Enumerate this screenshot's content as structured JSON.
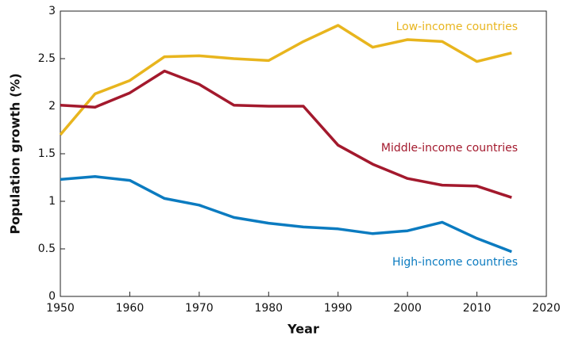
{
  "chart_data": {
    "type": "line",
    "x_label": "Year",
    "y_label": "Population growth (%)",
    "x": [
      1950,
      1955,
      1960,
      1965,
      1970,
      1975,
      1980,
      1985,
      1990,
      1995,
      2000,
      2005,
      2010,
      2015
    ],
    "series": [
      {
        "name": "Low-income countries",
        "color": "#e8b51e",
        "values": [
          1.7,
          2.13,
          2.27,
          2.52,
          2.53,
          2.5,
          2.48,
          2.68,
          2.85,
          2.62,
          2.7,
          2.68,
          2.47,
          2.56
        ]
      },
      {
        "name": "Middle-income countries",
        "color": "#a3192d",
        "values": [
          2.01,
          1.99,
          2.14,
          2.37,
          2.23,
          2.01,
          2.0,
          2.0,
          1.59,
          1.39,
          1.24,
          1.17,
          1.16,
          1.04
        ]
      },
      {
        "name": "High-income countries",
        "color": "#0b7bc0",
        "values": [
          1.23,
          1.26,
          1.22,
          1.03,
          0.96,
          0.83,
          0.77,
          0.73,
          0.71,
          0.66,
          0.69,
          0.78,
          0.61,
          0.47
        ]
      }
    ],
    "xlim": [
      1950,
      2020
    ],
    "xticks": [
      1950,
      1960,
      1970,
      1980,
      1990,
      2000,
      2010,
      2020
    ],
    "ylim": [
      0,
      3
    ],
    "yticks": [
      0,
      0.5,
      1,
      1.5,
      2,
      2.5,
      3
    ]
  }
}
